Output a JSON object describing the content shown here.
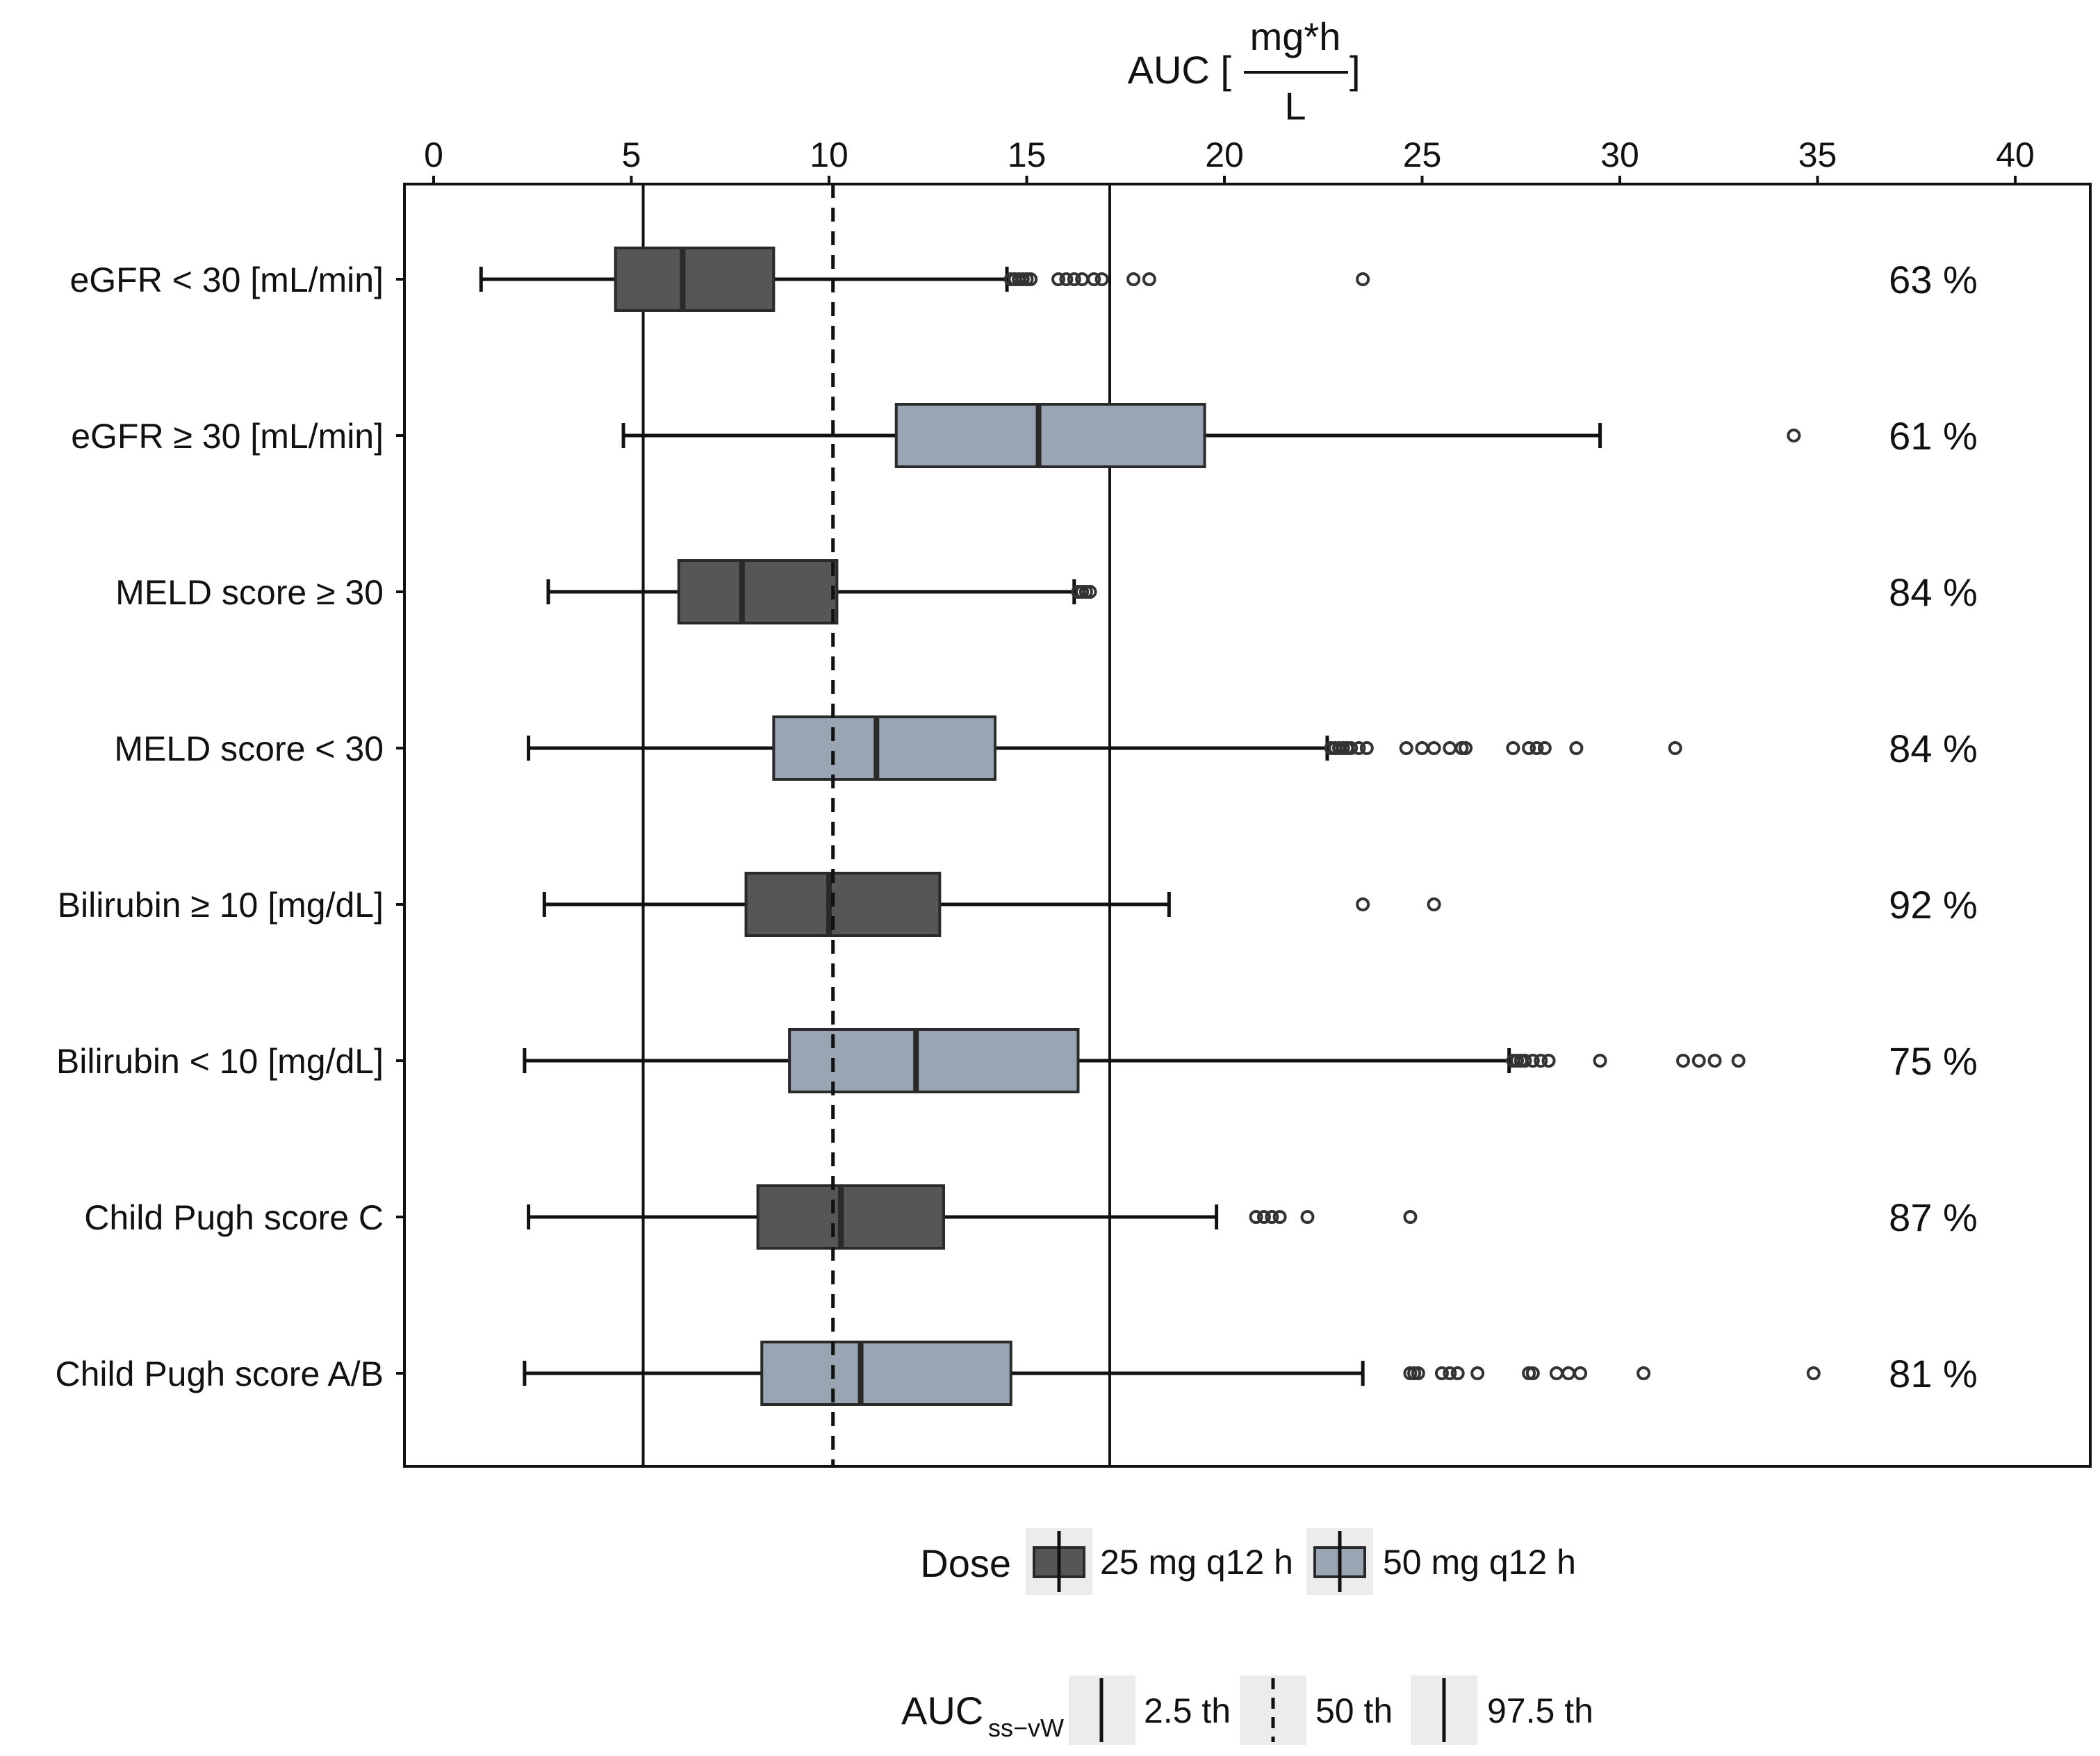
{
  "chart_data": {
    "type": "boxplot",
    "title_parts": {
      "prefix": "AUC [",
      "numerator": "mg*h",
      "denominator": "L",
      "suffix": "]"
    },
    "x_axis": {
      "min": 0,
      "max": 40,
      "ticks": [
        "0",
        "5",
        "10",
        "15",
        "20",
        "25",
        "30",
        "35",
        "40"
      ],
      "tick_values": [
        0,
        5,
        10,
        15,
        20,
        25,
        30,
        35,
        40
      ]
    },
    "reference_lines": {
      "p2_5": 5.3,
      "p50": 10.1,
      "p97_5": 17.1
    },
    "groups": [
      {
        "label": "eGFR < 30 [mL/min]",
        "dose": "25 mg q12 h",
        "whisker_low": 1.2,
        "q1": 4.6,
        "median": 6.3,
        "q3": 8.6,
        "whisker_high": 14.5,
        "outliers": [
          14.6,
          14.7,
          14.8,
          14.9,
          15.0,
          15.1,
          15.8,
          16.0,
          16.2,
          16.4,
          16.7,
          16.9,
          17.7,
          18.1,
          23.5
        ],
        "pct": "63 %"
      },
      {
        "label": "eGFR   ≥ 30 [mL/min]",
        "dose": "50 mg q12 h",
        "whisker_low": 4.8,
        "q1": 11.7,
        "median": 15.3,
        "q3": 19.5,
        "whisker_high": 29.5,
        "outliers": [
          34.4
        ],
        "pct": "61 %"
      },
      {
        "label": "MELD score   ≥ 30",
        "dose": "25 mg q12 h",
        "whisker_low": 2.9,
        "q1": 6.2,
        "median": 7.8,
        "q3": 10.2,
        "whisker_high": 16.2,
        "outliers": [
          16.3,
          16.4,
          16.5,
          16.6
        ],
        "pct": "84 %"
      },
      {
        "label": "MELD score < 30",
        "dose": "50 mg q12 h",
        "whisker_low": 2.4,
        "q1": 8.6,
        "median": 11.2,
        "q3": 14.2,
        "whisker_high": 22.6,
        "outliers": [
          22.7,
          22.8,
          22.9,
          23.0,
          23.1,
          23.2,
          23.4,
          23.6,
          24.6,
          25.0,
          25.3,
          25.7,
          26.0,
          26.1,
          27.3,
          27.7,
          27.9,
          28.1,
          28.9,
          31.4
        ],
        "pct": "84 %"
      },
      {
        "label": "Bilirubin   ≥ 10 [mg/dL]",
        "dose": "25 mg q12 h",
        "whisker_low": 2.8,
        "q1": 7.9,
        "median": 10.0,
        "q3": 12.8,
        "whisker_high": 18.6,
        "outliers": [
          23.5,
          25.3
        ],
        "pct": "92 %"
      },
      {
        "label": "Bilirubin < 10 [mg/dL]",
        "dose": "50 mg q12 h",
        "whisker_low": 2.3,
        "q1": 9.0,
        "median": 12.2,
        "q3": 16.3,
        "whisker_high": 27.2,
        "outliers": [
          27.3,
          27.4,
          27.5,
          27.6,
          27.8,
          28.0,
          28.2,
          29.5,
          31.6,
          32.0,
          32.4,
          33.0
        ],
        "pct": "75 %"
      },
      {
        "label": "Child Pugh score C",
        "dose": "25 mg q12 h",
        "whisker_low": 2.4,
        "q1": 8.2,
        "median": 10.3,
        "q3": 12.9,
        "whisker_high": 19.8,
        "outliers": [
          20.8,
          21.0,
          21.2,
          21.4,
          22.1,
          24.7
        ],
        "pct": "87 %"
      },
      {
        "label": "Child Pugh score A/B",
        "dose": "50 mg q12 h",
        "whisker_low": 2.3,
        "q1": 8.3,
        "median": 10.8,
        "q3": 14.6,
        "whisker_high": 23.5,
        "outliers": [
          24.7,
          24.8,
          24.9,
          25.5,
          25.7,
          25.9,
          26.4,
          27.7,
          27.8,
          28.4,
          28.7,
          29.0,
          30.6,
          34.9
        ],
        "pct": "81 %"
      }
    ],
    "legend_dose": {
      "title": "Dose",
      "items": [
        "25 mg q12 h",
        "50 mg q12 h"
      ]
    },
    "legend_auc": {
      "title": "AUC",
      "subscript": "ss−vW",
      "items": [
        "2.5 th",
        "50 th",
        "97.5 th"
      ]
    },
    "colors": {
      "dose_25": "#565656",
      "dose_50": "#9aa5b4",
      "box_stroke": "#2a2a2a",
      "line": "#111111"
    }
  }
}
